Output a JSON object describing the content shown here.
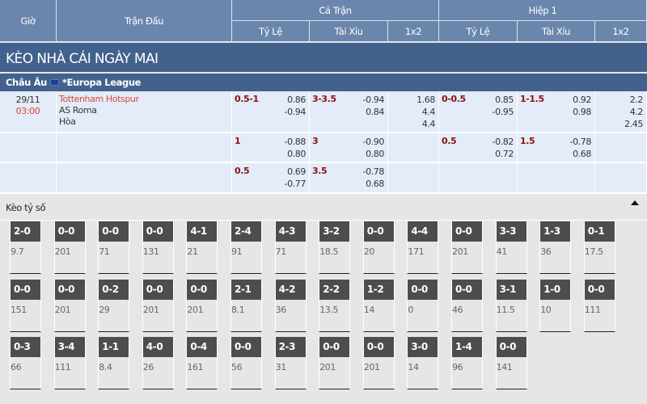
{
  "header": {
    "gio": "Giờ",
    "tran_dau": "Trận Đấu",
    "ca_tran": "Cả Trận",
    "hiep1": "Hiệp 1",
    "ty_le": "Tỷ Lệ",
    "tai_xiu": "Tài Xỉu",
    "x12": "1x2"
  },
  "banner": "KÈO NHÀ CÁI NGÀY MAI",
  "league": {
    "region": "Châu Âu",
    "name": "*Europa League",
    "flag_icon": "eu-flag-icon"
  },
  "match": {
    "date": "29/11",
    "time": "03:00",
    "home": "Tottenham Hotspur",
    "away": "AS Roma",
    "draw": "Hòa"
  },
  "rows": [
    {
      "ft_hdp": "0.5-1",
      "ft_hdp_o": [
        "0.86",
        "-0.94"
      ],
      "ft_ou": "3-3.5",
      "ft_ou_o": [
        "-0.94",
        "0.84"
      ],
      "ft_1x2": [
        "1.68",
        "4.4",
        "4.4"
      ],
      "h1_hdp": "0-0.5",
      "h1_hdp_o": [
        "0.85",
        "-0.95"
      ],
      "h1_ou": "1-1.5",
      "h1_ou_o": [
        "0.92",
        "0.98"
      ],
      "h1_1x2": [
        "2.2",
        "4.2",
        "2.45"
      ]
    },
    {
      "ft_hdp": "1",
      "ft_hdp_o": [
        "-0.88",
        "0.80"
      ],
      "ft_ou": "3",
      "ft_ou_o": [
        "-0.90",
        "0.80"
      ],
      "h1_hdp": "0.5",
      "h1_hdp_o": [
        "-0.82",
        "0.72"
      ],
      "h1_ou": "1.5",
      "h1_ou_o": [
        "-0.78",
        "0.68"
      ]
    },
    {
      "ft_hdp": "0.5",
      "ft_hdp_o": [
        "0.69",
        "-0.77"
      ],
      "ft_ou": "3.5",
      "ft_ou_o": [
        "-0.78",
        "0.68"
      ]
    }
  ],
  "correct_score": {
    "title": "Kèo tỷ số",
    "tiles": [
      [
        [
          "2-0",
          "9.7"
        ],
        [
          "0-0",
          "201"
        ],
        [
          "0-0",
          "71"
        ],
        [
          "0-0",
          "131"
        ],
        [
          "4-1",
          "21"
        ],
        [
          "2-4",
          "91"
        ],
        [
          "4-3",
          "71"
        ],
        [
          "3-2",
          "18.5"
        ],
        [
          "0-0",
          "20"
        ],
        [
          "4-4",
          "171"
        ],
        [
          "0-0",
          "201"
        ],
        [
          "3-3",
          "41"
        ],
        [
          "1-3",
          "36"
        ],
        [
          "0-1",
          "17.5"
        ]
      ],
      [
        [
          "0-0",
          "151"
        ],
        [
          "0-0",
          "201"
        ],
        [
          "0-2",
          "29"
        ],
        [
          "0-0",
          "201"
        ],
        [
          "0-0",
          "201"
        ],
        [
          "2-1",
          "8.1"
        ],
        [
          "4-2",
          "36"
        ],
        [
          "2-2",
          "13.5"
        ],
        [
          "1-2",
          "14"
        ],
        [
          "0-0",
          "0"
        ],
        [
          "0-0",
          "46"
        ],
        [
          "3-1",
          "11.5"
        ],
        [
          "1-0",
          "10"
        ],
        [
          "0-0",
          "111"
        ]
      ],
      [
        [
          "0-3",
          "66"
        ],
        [
          "3-4",
          "111"
        ],
        [
          "1-1",
          "8.4"
        ],
        [
          "4-0",
          "26"
        ],
        [
          "0-4",
          "161"
        ],
        [
          "0-0",
          "56"
        ],
        [
          "2-3",
          "31"
        ],
        [
          "0-0",
          "201"
        ],
        [
          "0-0",
          "201"
        ],
        [
          "3-0",
          "14"
        ],
        [
          "1-4",
          "96"
        ],
        [
          "0-0",
          "141"
        ]
      ]
    ]
  }
}
